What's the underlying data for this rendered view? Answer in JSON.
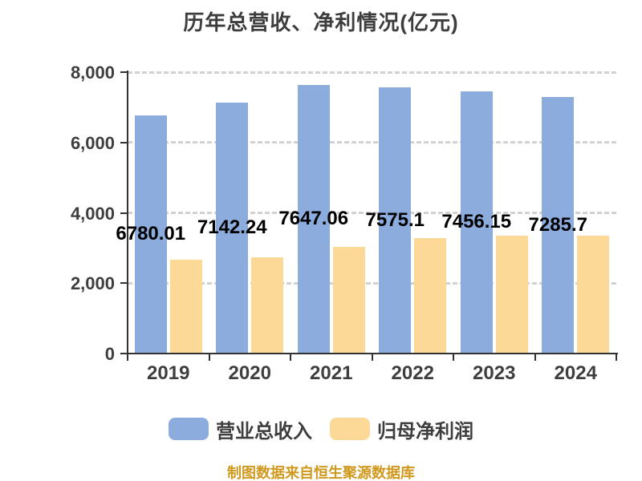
{
  "caption": "制图数据来自恒生聚源数据库",
  "colors": {
    "axis": "#333333",
    "grid": "#d2d2d2",
    "title_text": "#3d3d3d",
    "axis_text": "#3e3e3e",
    "data_label_text": "#000000",
    "caption_text": "#d0991e",
    "background": "#ffffff"
  },
  "chart_data": {
    "type": "bar",
    "title": "历年总营收、净利情况(亿元)",
    "categories": [
      "2019",
      "2020",
      "2021",
      "2022",
      "2023",
      "2024"
    ],
    "series": [
      {
        "name": "营业总收入",
        "color": "#8bacdc",
        "values": [
          6780.01,
          7142.24,
          7647.06,
          7575.1,
          7456.15,
          7285.7
        ],
        "data_labels": [
          "6780.01",
          "7142.24",
          "7647.06",
          "7575.1",
          "7456.15",
          "7285.7"
        ]
      },
      {
        "name": "归母净利润",
        "color": "#fdd998",
        "values": [
          2670,
          2730,
          3030,
          3290,
          3340,
          3355
        ],
        "data_labels": []
      }
    ],
    "ylim": [
      0,
      8000
    ],
    "y_ticks": [
      0,
      2000,
      4000,
      6000,
      8000
    ],
    "y_tick_labels": [
      "0",
      "2,000",
      "4,000",
      "6,000",
      "8,000"
    ],
    "grid": "horizontal-dashed",
    "legend_position": "bottom"
  }
}
